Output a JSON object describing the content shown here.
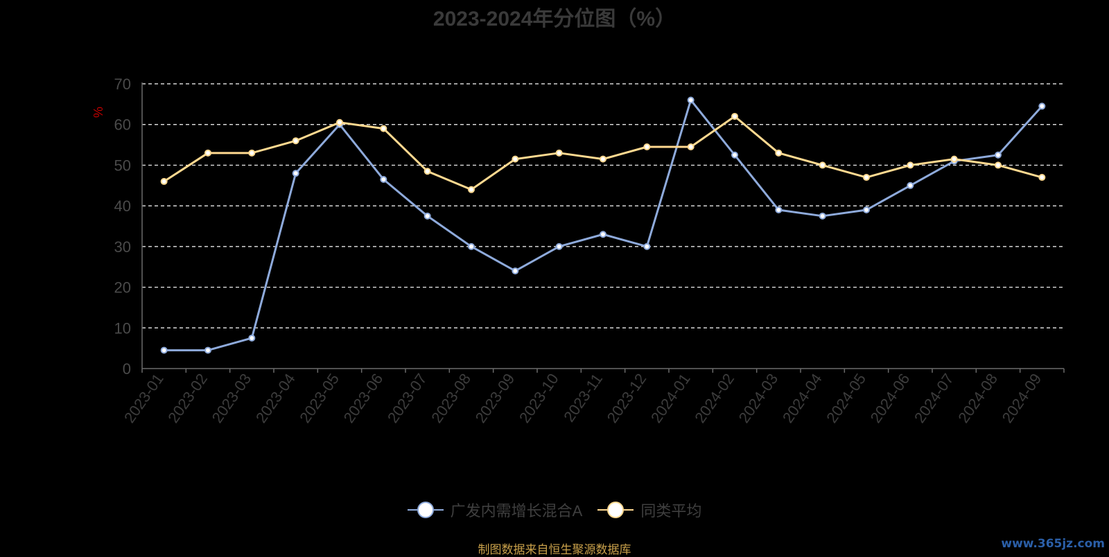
{
  "chart_data": {
    "type": "line",
    "title": "2023-2024年分位图（%）",
    "ylabel": "%",
    "xlabel": "",
    "ylim": [
      0,
      70
    ],
    "yticks": [
      0,
      10,
      20,
      30,
      40,
      50,
      60,
      70
    ],
    "grid": true,
    "legend_position": "bottom",
    "categories": [
      "2023-01",
      "2023-02",
      "2023-03",
      "2023-04",
      "2023-05",
      "2023-06",
      "2023-07",
      "2023-08",
      "2023-09",
      "2023-10",
      "2023-11",
      "2023-12",
      "2024-01",
      "2024-02",
      "2024-03",
      "2024-04",
      "2024-05",
      "2024-06",
      "2024-07",
      "2024-08",
      "2024-09"
    ],
    "series": [
      {
        "name": "广发内需增长混合A",
        "color": "#8eaadb",
        "values": [
          4.5,
          4.5,
          7.5,
          48,
          60,
          46.5,
          37.5,
          30,
          24,
          30,
          33,
          30,
          66,
          52.5,
          39,
          37.5,
          39,
          45,
          51,
          52.5,
          64.5
        ]
      },
      {
        "name": "同类平均",
        "color": "#ffd990",
        "values": [
          46,
          53,
          53,
          56,
          60.5,
          59,
          48.5,
          44,
          51.5,
          53,
          51.5,
          54.5,
          54.5,
          62,
          53,
          50,
          47,
          50,
          51.5,
          50,
          47
        ]
      }
    ]
  },
  "source_note": "制图数据来自恒生聚源数据库",
  "watermark": "www.365jz.com"
}
